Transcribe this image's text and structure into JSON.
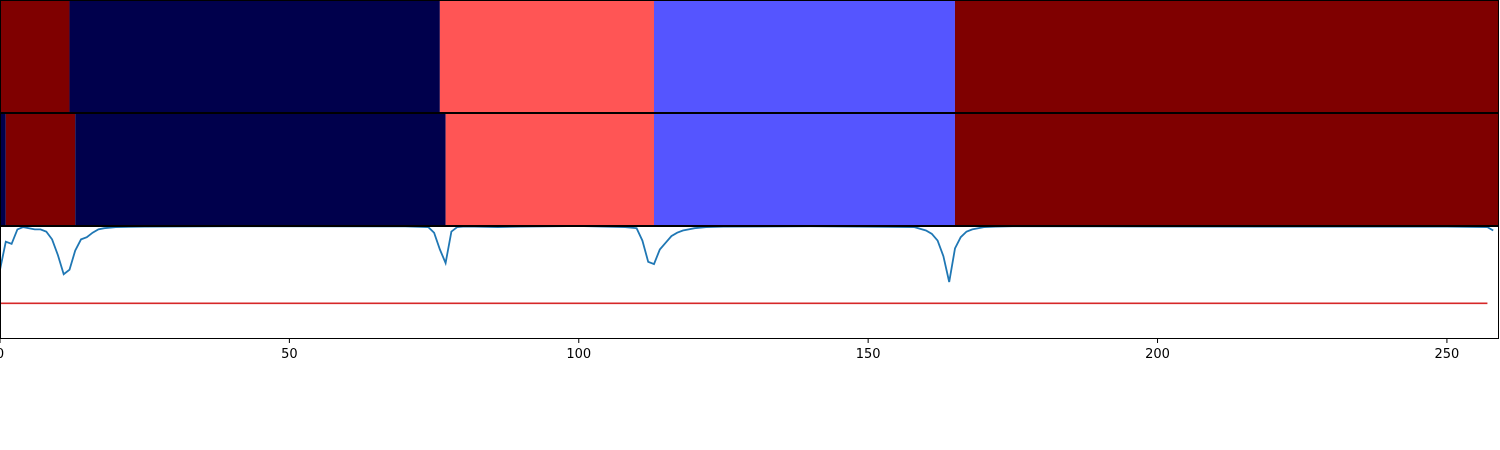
{
  "chart_data": [
    {
      "type": "heatmap",
      "name": "segmentation-track-1",
      "xlim": [
        0,
        259
      ],
      "segments": [
        {
          "start": 0,
          "end": 12,
          "color": "#7f0000"
        },
        {
          "start": 12,
          "end": 76,
          "color": "#00004c"
        },
        {
          "start": 76,
          "end": 113,
          "color": "#ff5555"
        },
        {
          "start": 113,
          "end": 165,
          "color": "#5555ff"
        },
        {
          "start": 165,
          "end": 259,
          "color": "#7f0000"
        }
      ]
    },
    {
      "type": "heatmap",
      "name": "segmentation-track-2",
      "xlim": [
        0,
        259
      ],
      "segments": [
        {
          "start": 0,
          "end": 1,
          "color": "#00004c"
        },
        {
          "start": 1,
          "end": 13,
          "color": "#7f0000"
        },
        {
          "start": 13,
          "end": 77,
          "color": "#00004c"
        },
        {
          "start": 77,
          "end": 113,
          "color": "#ff5555"
        },
        {
          "start": 113,
          "end": 165,
          "color": "#5555ff"
        },
        {
          "start": 165,
          "end": 259,
          "color": "#7f0000"
        }
      ]
    },
    {
      "type": "line",
      "xlim": [
        0,
        259
      ],
      "ylim": [
        0,
        1
      ],
      "xticks": [
        0,
        50,
        100,
        150,
        200,
        250
      ],
      "threshold": 0.31,
      "threshold_color": "#d62728",
      "line_color": "#1f77b4",
      "series": [
        {
          "x": [
            0,
            1,
            2,
            3,
            4,
            5,
            6,
            7,
            8,
            9,
            10,
            11,
            12,
            13,
            14,
            15,
            16,
            17,
            18,
            20,
            25,
            40,
            70,
            74,
            75,
            76,
            77,
            78,
            79,
            80,
            82,
            86,
            90,
            100,
            108,
            110,
            111,
            112,
            113,
            114,
            115,
            116,
            117,
            118,
            119,
            120,
            122,
            125,
            140,
            158,
            160,
            161,
            162,
            163,
            164,
            165,
            166,
            167,
            168,
            169,
            170,
            172,
            175,
            190,
            220,
            250,
            257,
            258
          ],
          "y": [
            0.61,
            0.86,
            0.84,
            0.97,
            0.99,
            0.98,
            0.97,
            0.97,
            0.95,
            0.88,
            0.74,
            0.57,
            0.61,
            0.78,
            0.88,
            0.9,
            0.94,
            0.97,
            0.98,
            0.99,
            0.995,
            0.998,
            0.996,
            0.99,
            0.94,
            0.79,
            0.67,
            0.95,
            0.99,
            0.995,
            0.995,
            0.99,
            0.995,
            1.0,
            0.99,
            0.98,
            0.87,
            0.68,
            0.66,
            0.79,
            0.85,
            0.91,
            0.94,
            0.96,
            0.97,
            0.98,
            0.99,
            0.995,
            0.998,
            0.99,
            0.96,
            0.93,
            0.87,
            0.73,
            0.5,
            0.8,
            0.9,
            0.95,
            0.97,
            0.98,
            0.99,
            0.995,
            0.998,
            0.996,
            0.995,
            0.995,
            0.99,
            0.96
          ]
        }
      ]
    }
  ]
}
